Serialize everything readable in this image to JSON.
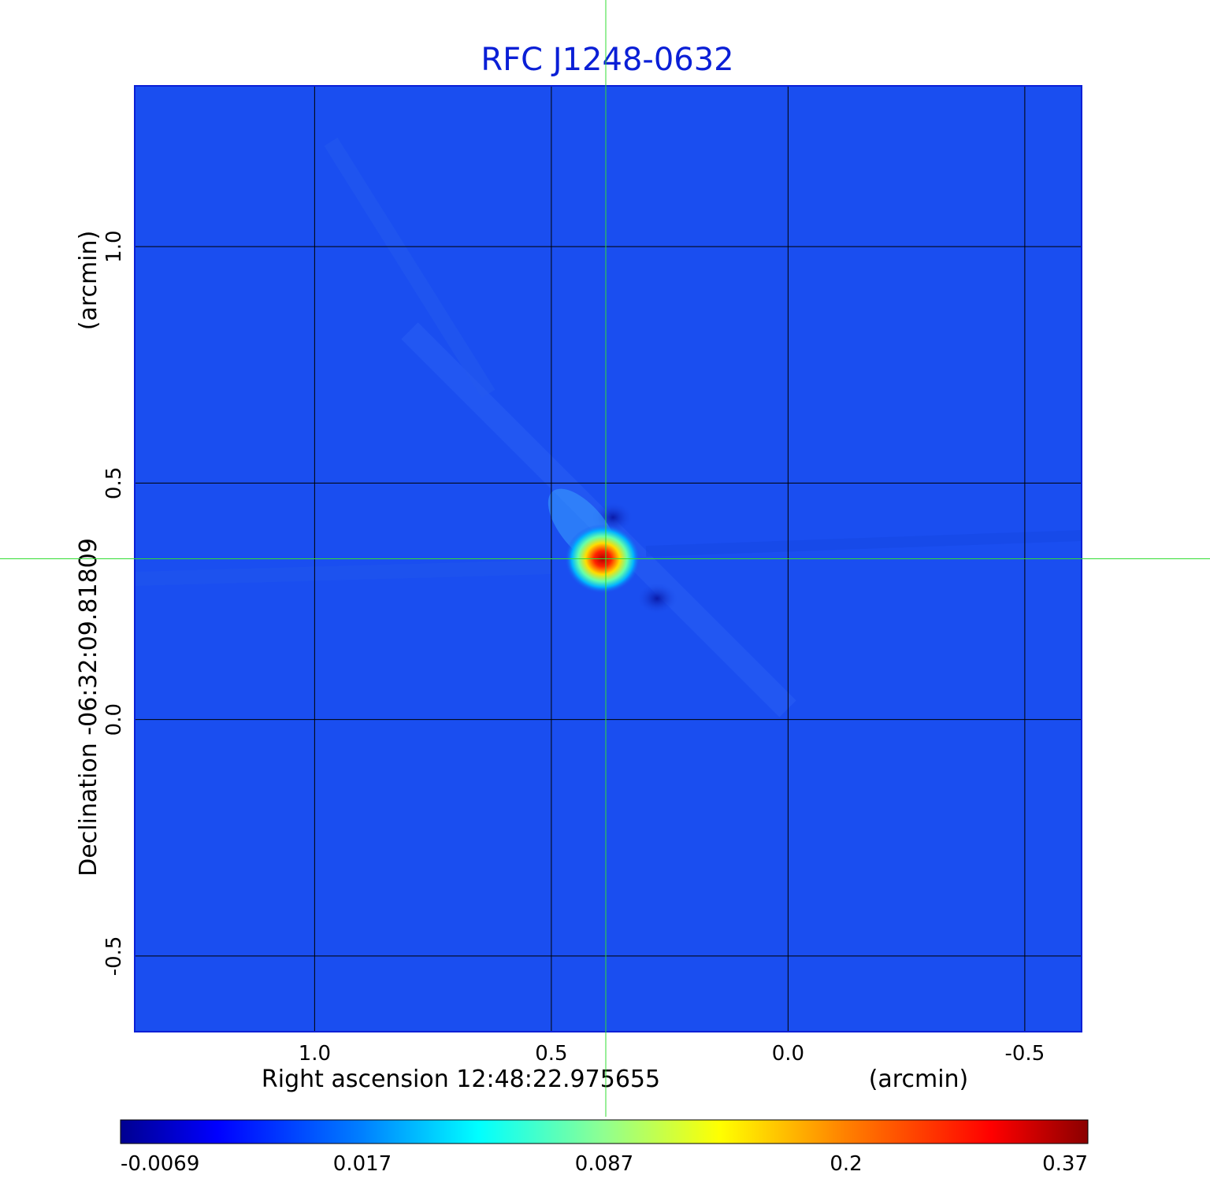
{
  "chart_data": {
    "type": "heatmap",
    "title": "RFC J1248-0632",
    "xlabel": "Right ascension  12:48:22.975655",
    "xunit": "(arcmin)",
    "ylabel": "Declination  -06:32:09.81809",
    "yunit": "(arcmin)",
    "x_range": [
      1.38,
      -0.62
    ],
    "y_range": [
      -0.66,
      1.34
    ],
    "x_ticks": [
      1.0,
      0.5,
      0.0,
      -0.5
    ],
    "x_tick_labels": [
      "1.0",
      "0.5",
      "0.0",
      "-0.5"
    ],
    "y_ticks": [
      1.0,
      0.5,
      0.0,
      -0.5
    ],
    "y_tick_labels": [
      "1.0",
      "0.5",
      "0.0",
      "-0.5"
    ],
    "grid": true,
    "crosshair": {
      "x": 0.385,
      "y": 0.34,
      "color": "#33dd33"
    },
    "peak": {
      "x": 0.385,
      "y": 0.34,
      "value": 0.37
    },
    "colorbar": {
      "colormap": "jet",
      "scale": "nonlinear",
      "tick_labels": [
        "-0.0069",
        "0.017",
        "0.087",
        "0.2",
        "0.37"
      ],
      "min": -0.0069,
      "max": 0.37
    },
    "background_color": "#1a4ef0",
    "frame_color": "#0a1fd6"
  }
}
